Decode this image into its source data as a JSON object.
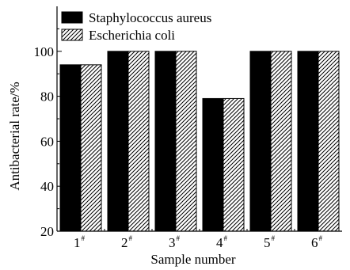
{
  "chart_data": {
    "type": "bar",
    "categories": [
      "1",
      "2",
      "3",
      "4",
      "5",
      "6"
    ],
    "category_superscript": "#",
    "series": [
      {
        "name": "Staphylococcus aureus",
        "values": [
          94,
          100,
          100,
          79,
          100,
          100
        ],
        "fill": "solid",
        "color": "#000000"
      },
      {
        "name": "Escherichia coli",
        "values": [
          94,
          100,
          100,
          79,
          100,
          100
        ],
        "fill": "hatched",
        "color": "#000000"
      }
    ],
    "title": "",
    "xlabel": "Sample number",
    "ylabel": "Antibacterial rate/%",
    "ylim": [
      20,
      120
    ],
    "yticks": [
      "20",
      "40",
      "60",
      "80",
      "100"
    ],
    "grid": false,
    "legend_position": "top-left"
  }
}
